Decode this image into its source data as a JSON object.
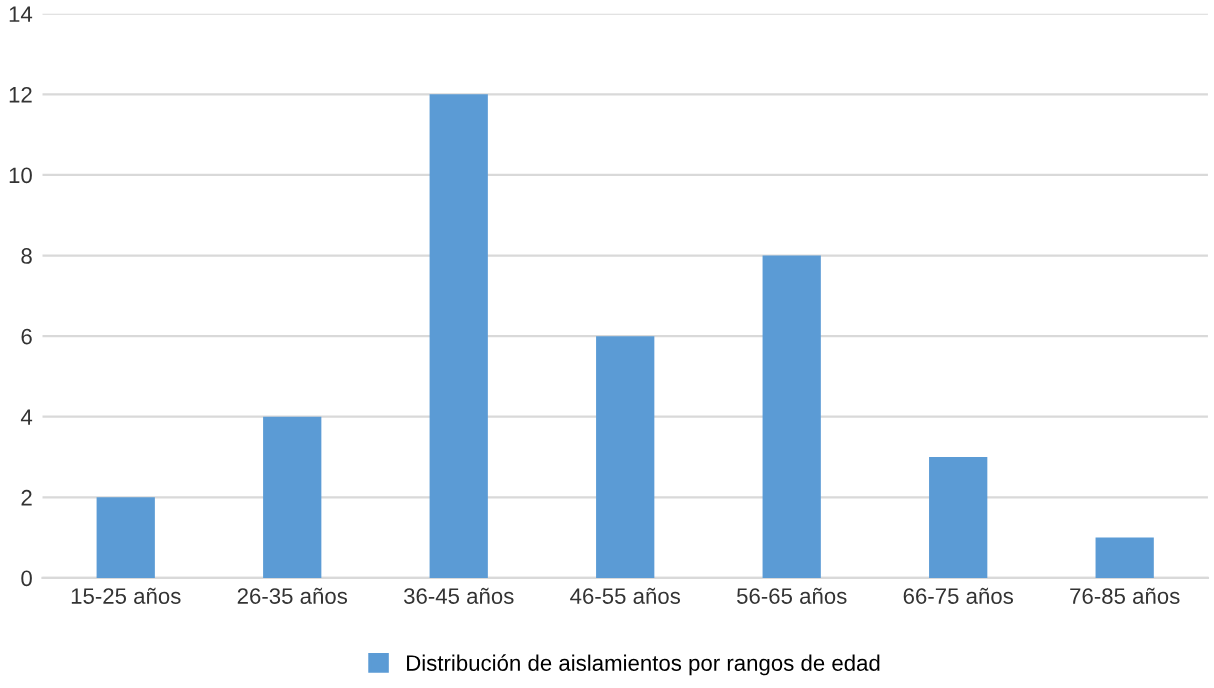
{
  "chart_data": {
    "type": "bar",
    "categories": [
      "15-25 años",
      "26-35 años",
      "36-45 años",
      "46-55 años",
      "56-65 años",
      "66-75 años",
      "76-85 años"
    ],
    "series": [
      {
        "name": "Distribución de aislamientos por rangos de edad",
        "color": "#5b9bd5",
        "values": [
          2,
          4,
          12,
          6,
          8,
          3,
          1
        ]
      }
    ],
    "ylim": [
      0,
      14
    ],
    "yticks": [
      0,
      2,
      4,
      6,
      8,
      10,
      12,
      14
    ],
    "grid": "y",
    "legend": "bottom"
  }
}
